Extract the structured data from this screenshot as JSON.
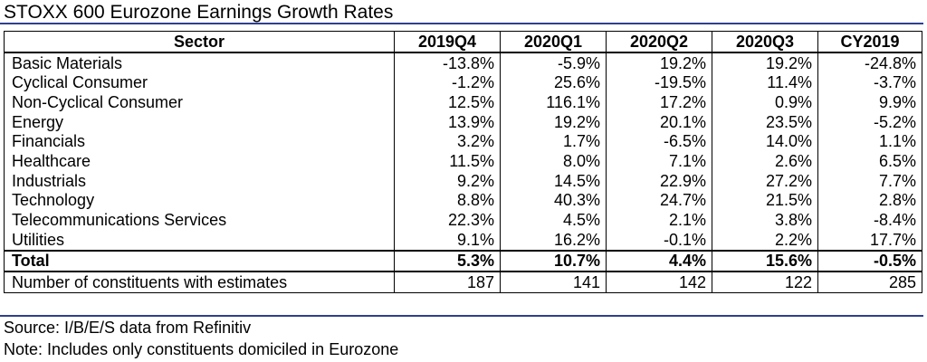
{
  "title": "STOXX 600 Eurozone Earnings Growth Rates",
  "colors": {
    "rule": "#2f3f8f",
    "text": "#000000",
    "background": "#ffffff"
  },
  "chart_data": {
    "type": "table",
    "columns": [
      "Sector",
      "2019Q4",
      "2020Q1",
      "2020Q2",
      "2020Q3",
      "CY2019"
    ],
    "rows": [
      [
        "Basic Materials",
        "-13.8%",
        "-5.9%",
        "19.2%",
        "19.2%",
        "-24.8%"
      ],
      [
        "Cyclical Consumer",
        "-1.2%",
        "25.6%",
        "-19.5%",
        "11.4%",
        "-3.7%"
      ],
      [
        "Non-Cyclical Consumer",
        "12.5%",
        "116.1%",
        "17.2%",
        "0.9%",
        "9.9%"
      ],
      [
        "Energy",
        "13.9%",
        "19.2%",
        "20.1%",
        "23.5%",
        "-5.2%"
      ],
      [
        "Financials",
        "3.2%",
        "1.7%",
        "-6.5%",
        "14.0%",
        "1.1%"
      ],
      [
        "Healthcare",
        "11.5%",
        "8.0%",
        "7.1%",
        "2.6%",
        "6.5%"
      ],
      [
        "Industrials",
        "9.2%",
        "14.5%",
        "22.9%",
        "27.2%",
        "7.7%"
      ],
      [
        "Technology",
        "8.8%",
        "40.3%",
        "24.7%",
        "21.5%",
        "2.8%"
      ],
      [
        "Telecommunications Services",
        "22.3%",
        "4.5%",
        "2.1%",
        "3.8%",
        "-8.4%"
      ],
      [
        "Utilities",
        "9.1%",
        "16.2%",
        "-0.1%",
        "2.2%",
        "17.7%"
      ]
    ],
    "total": [
      "Total",
      "5.3%",
      "10.7%",
      "4.4%",
      "15.6%",
      "-0.5%"
    ],
    "count": [
      "Number of constituents with estimates",
      "187",
      "141",
      "142",
      "122",
      "285"
    ]
  },
  "footer": {
    "source": "Source: I/B/E/S data from Refinitiv",
    "note": "Note: Includes only constituents domiciled in Eurozone"
  }
}
